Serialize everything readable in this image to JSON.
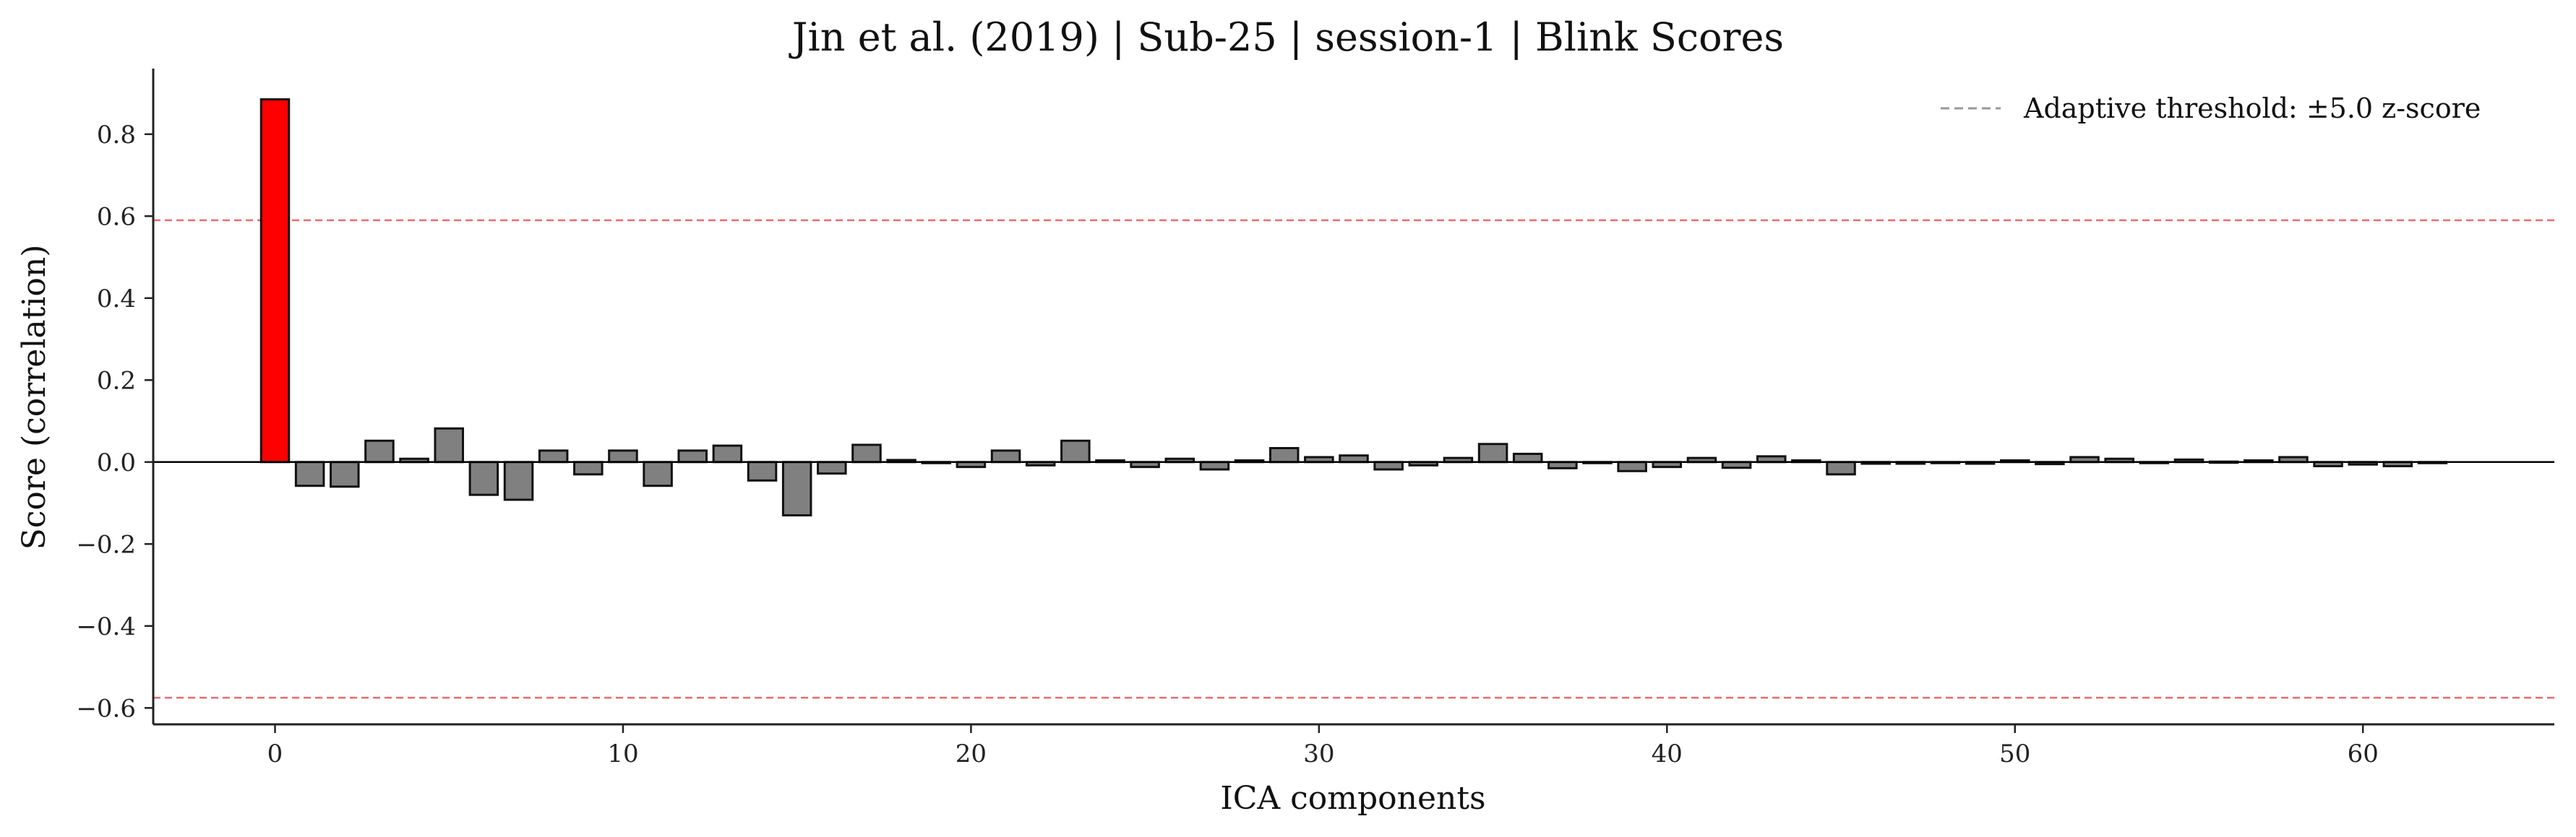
{
  "chart_data": {
    "type": "bar",
    "title": "Jin et al. (2019) | Sub-25 | session-1 | Blink Scores",
    "xlabel": "ICA components",
    "ylabel": "Score (correlation)",
    "xlim": [
      -3.5,
      65.5
    ],
    "ylim": [
      -0.64,
      0.96
    ],
    "xticks": [
      0,
      10,
      20,
      30,
      40,
      50,
      60
    ],
    "yticks": [
      -0.6,
      -0.4,
      -0.2,
      0.0,
      0.2,
      0.4,
      0.6,
      0.8
    ],
    "xtick_labels": [
      "0",
      "10",
      "20",
      "30",
      "40",
      "50",
      "60"
    ],
    "ytick_labels": [
      "−0.6",
      "−0.4",
      "−0.2",
      "0.0",
      "0.2",
      "0.4",
      "0.6",
      "0.8"
    ],
    "thresholds": [
      0.59,
      -0.575
    ],
    "legend": {
      "label": "Adaptive threshold: ±5.0 z-score",
      "placement": "top-right"
    },
    "flagged_components": [
      0
    ],
    "colors": {
      "normal_bar": "#808080",
      "flagged_bar": "#ff0000",
      "bar_edge": "#111111",
      "threshold_line": "#e86b6b",
      "legend_line": "#999999",
      "zero_line": "#000000",
      "axis": "#222222"
    },
    "x": [
      0,
      1,
      2,
      3,
      4,
      5,
      6,
      7,
      8,
      9,
      10,
      11,
      12,
      13,
      14,
      15,
      16,
      17,
      18,
      19,
      20,
      21,
      22,
      23,
      24,
      25,
      26,
      27,
      28,
      29,
      30,
      31,
      32,
      33,
      34,
      35,
      36,
      37,
      38,
      39,
      40,
      41,
      42,
      43,
      44,
      45,
      46,
      47,
      48,
      49,
      50,
      51,
      52,
      53,
      54,
      55,
      56,
      57,
      58,
      59,
      60,
      61,
      62
    ],
    "values": [
      0.885,
      -0.058,
      -0.06,
      0.052,
      0.008,
      0.082,
      -0.08,
      -0.092,
      0.028,
      -0.03,
      0.028,
      -0.058,
      0.028,
      0.04,
      -0.045,
      -0.13,
      -0.028,
      0.042,
      0.005,
      -0.002,
      -0.012,
      0.028,
      -0.008,
      0.052,
      0.004,
      -0.012,
      0.008,
      -0.018,
      0.004,
      0.034,
      0.012,
      0.016,
      -0.018,
      -0.008,
      0.01,
      0.044,
      0.02,
      -0.015,
      -0.002,
      -0.022,
      -0.012,
      0.01,
      -0.014,
      0.014,
      0.004,
      -0.03,
      -0.004,
      -0.004,
      -0.002,
      -0.004,
      0.004,
      -0.005,
      0.012,
      0.008,
      -0.002,
      0.006,
      0.001,
      0.004,
      0.012,
      -0.01,
      -0.006,
      -0.01,
      -0.002
    ]
  }
}
